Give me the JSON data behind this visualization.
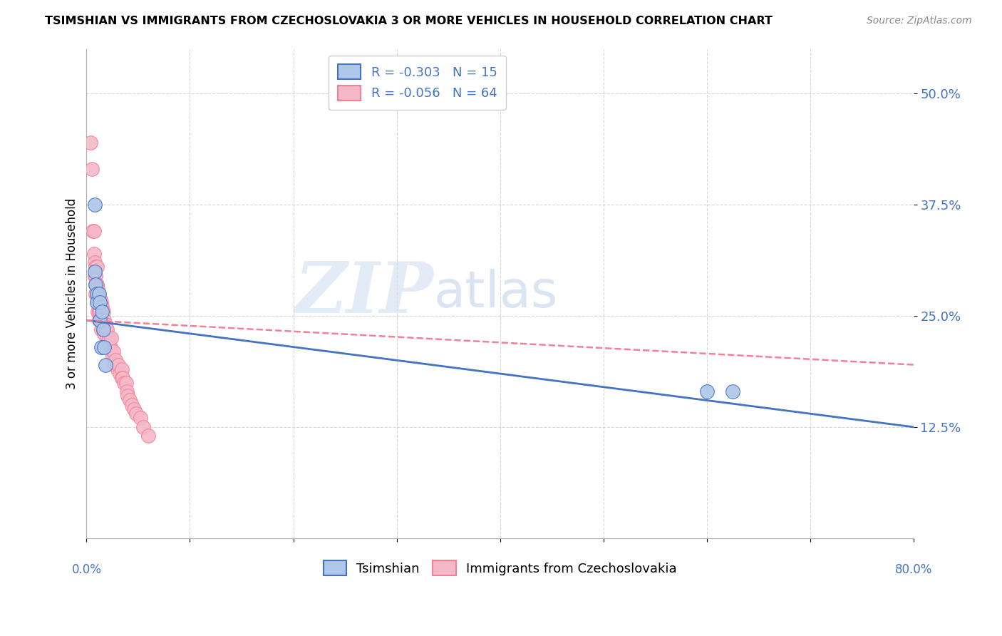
{
  "title": "TSIMSHIAN VS IMMIGRANTS FROM CZECHOSLOVAKIA 3 OR MORE VEHICLES IN HOUSEHOLD CORRELATION CHART",
  "source": "Source: ZipAtlas.com",
  "ylabel": "3 or more Vehicles in Household",
  "xmin": 0.0,
  "xmax": 0.8,
  "ymin": 0.0,
  "ymax": 0.55,
  "yticks": [
    0.125,
    0.25,
    0.375,
    0.5
  ],
  "ytick_labels": [
    "12.5%",
    "25.0%",
    "37.5%",
    "50.0%"
  ],
  "color_blue": "#aec6e8",
  "color_pink": "#f5b8c8",
  "line_blue": "#4472c4",
  "line_pink": "#f48098",
  "text_color": "#4472c4",
  "watermark_zip": "ZIP",
  "watermark_atlas": "atlas",
  "blue_line_x": [
    0.0,
    0.8
  ],
  "blue_line_y": [
    0.245,
    0.125
  ],
  "pink_line_x": [
    0.0,
    0.8
  ],
  "pink_line_y": [
    0.245,
    0.195
  ],
  "tsimshian_x": [
    0.008,
    0.008,
    0.009,
    0.01,
    0.01,
    0.012,
    0.013,
    0.013,
    0.014,
    0.015,
    0.016,
    0.017,
    0.018,
    0.6,
    0.625
  ],
  "tsimshian_y": [
    0.375,
    0.3,
    0.285,
    0.275,
    0.265,
    0.275,
    0.265,
    0.245,
    0.215,
    0.255,
    0.235,
    0.215,
    0.195,
    0.165,
    0.165
  ],
  "immigrants_x": [
    0.004,
    0.005,
    0.006,
    0.007,
    0.007,
    0.008,
    0.008,
    0.009,
    0.009,
    0.009,
    0.009,
    0.01,
    0.01,
    0.01,
    0.01,
    0.011,
    0.011,
    0.011,
    0.012,
    0.012,
    0.012,
    0.012,
    0.013,
    0.013,
    0.013,
    0.014,
    0.014,
    0.014,
    0.015,
    0.015,
    0.016,
    0.016,
    0.016,
    0.017,
    0.017,
    0.018,
    0.019,
    0.02,
    0.02,
    0.021,
    0.022,
    0.023,
    0.024,
    0.025,
    0.026,
    0.027,
    0.028,
    0.03,
    0.031,
    0.032,
    0.034,
    0.034,
    0.035,
    0.036,
    0.038,
    0.039,
    0.04,
    0.042,
    0.044,
    0.046,
    0.048,
    0.052,
    0.055,
    0.06
  ],
  "immigrants_y": [
    0.445,
    0.415,
    0.345,
    0.345,
    0.32,
    0.31,
    0.295,
    0.305,
    0.295,
    0.285,
    0.275,
    0.305,
    0.285,
    0.275,
    0.265,
    0.28,
    0.27,
    0.255,
    0.275,
    0.265,
    0.255,
    0.245,
    0.27,
    0.255,
    0.245,
    0.265,
    0.245,
    0.235,
    0.26,
    0.245,
    0.255,
    0.245,
    0.235,
    0.245,
    0.23,
    0.24,
    0.235,
    0.235,
    0.225,
    0.22,
    0.225,
    0.215,
    0.225,
    0.205,
    0.21,
    0.195,
    0.2,
    0.19,
    0.195,
    0.185,
    0.19,
    0.18,
    0.18,
    0.175,
    0.175,
    0.165,
    0.16,
    0.155,
    0.15,
    0.145,
    0.14,
    0.135,
    0.125,
    0.115
  ]
}
